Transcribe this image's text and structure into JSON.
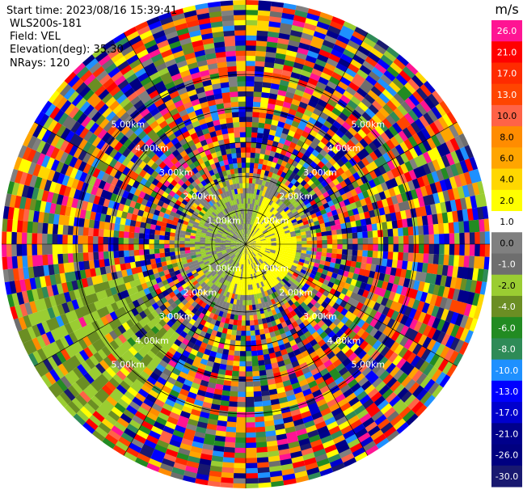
{
  "info": {
    "start_time": "Start time: 2023/08/16 15:39:41",
    "instrument": "WLS200s-181",
    "field": "Field: VEL",
    "elevation": "Elevation(deg): 35.30",
    "nrays": "NRays: 120"
  },
  "chart_data": {
    "type": "heatmap",
    "projection": "polar-ppi",
    "field": "VEL",
    "unit": "m/s",
    "nrays": 120,
    "elevation_deg": 35.3,
    "range_rings_km": [
      1.0,
      2.0,
      3.0,
      4.0,
      5.0
    ],
    "range_ring_labels": [
      "1.00km",
      "2.00km",
      "3.00km",
      "4.00km",
      "5.00km"
    ],
    "max_range_km": 7.3,
    "colorbar": {
      "unit": "m/s",
      "min": -30.0,
      "max": 26.0,
      "tick_labels": [
        "26.0",
        "21.0",
        "17.0",
        "13.0",
        "10.0",
        "8.0",
        "6.0",
        "4.0",
        "2.0",
        "1.0",
        "0.0",
        "-1.0",
        "-2.0",
        "-4.0",
        "-6.0",
        "-8.0",
        "-10.0",
        "-13.0",
        "-17.0",
        "-21.0",
        "-26.0",
        "-30.0"
      ],
      "colors": [
        "#ff1493",
        "#ff0000",
        "#ff2b00",
        "#ff4500",
        "#ff6347",
        "#ff8c00",
        "#ffa500",
        "#ffd700",
        "#ffff00",
        "#ffffff",
        "#808080",
        "#6e6e6e",
        "#9acd32",
        "#6b8e23",
        "#228b22",
        "#2e8b57",
        "#1e90ff",
        "#0000ff",
        "#0000cd",
        "#00008b",
        "#000080",
        "#191970"
      ]
    },
    "notes": "gate values dominated by noise beyond ~1.5 km; near-field yellow (+2 m/s) on one side, green (-2 m/s) and grey (0 m/s) elsewhere"
  }
}
